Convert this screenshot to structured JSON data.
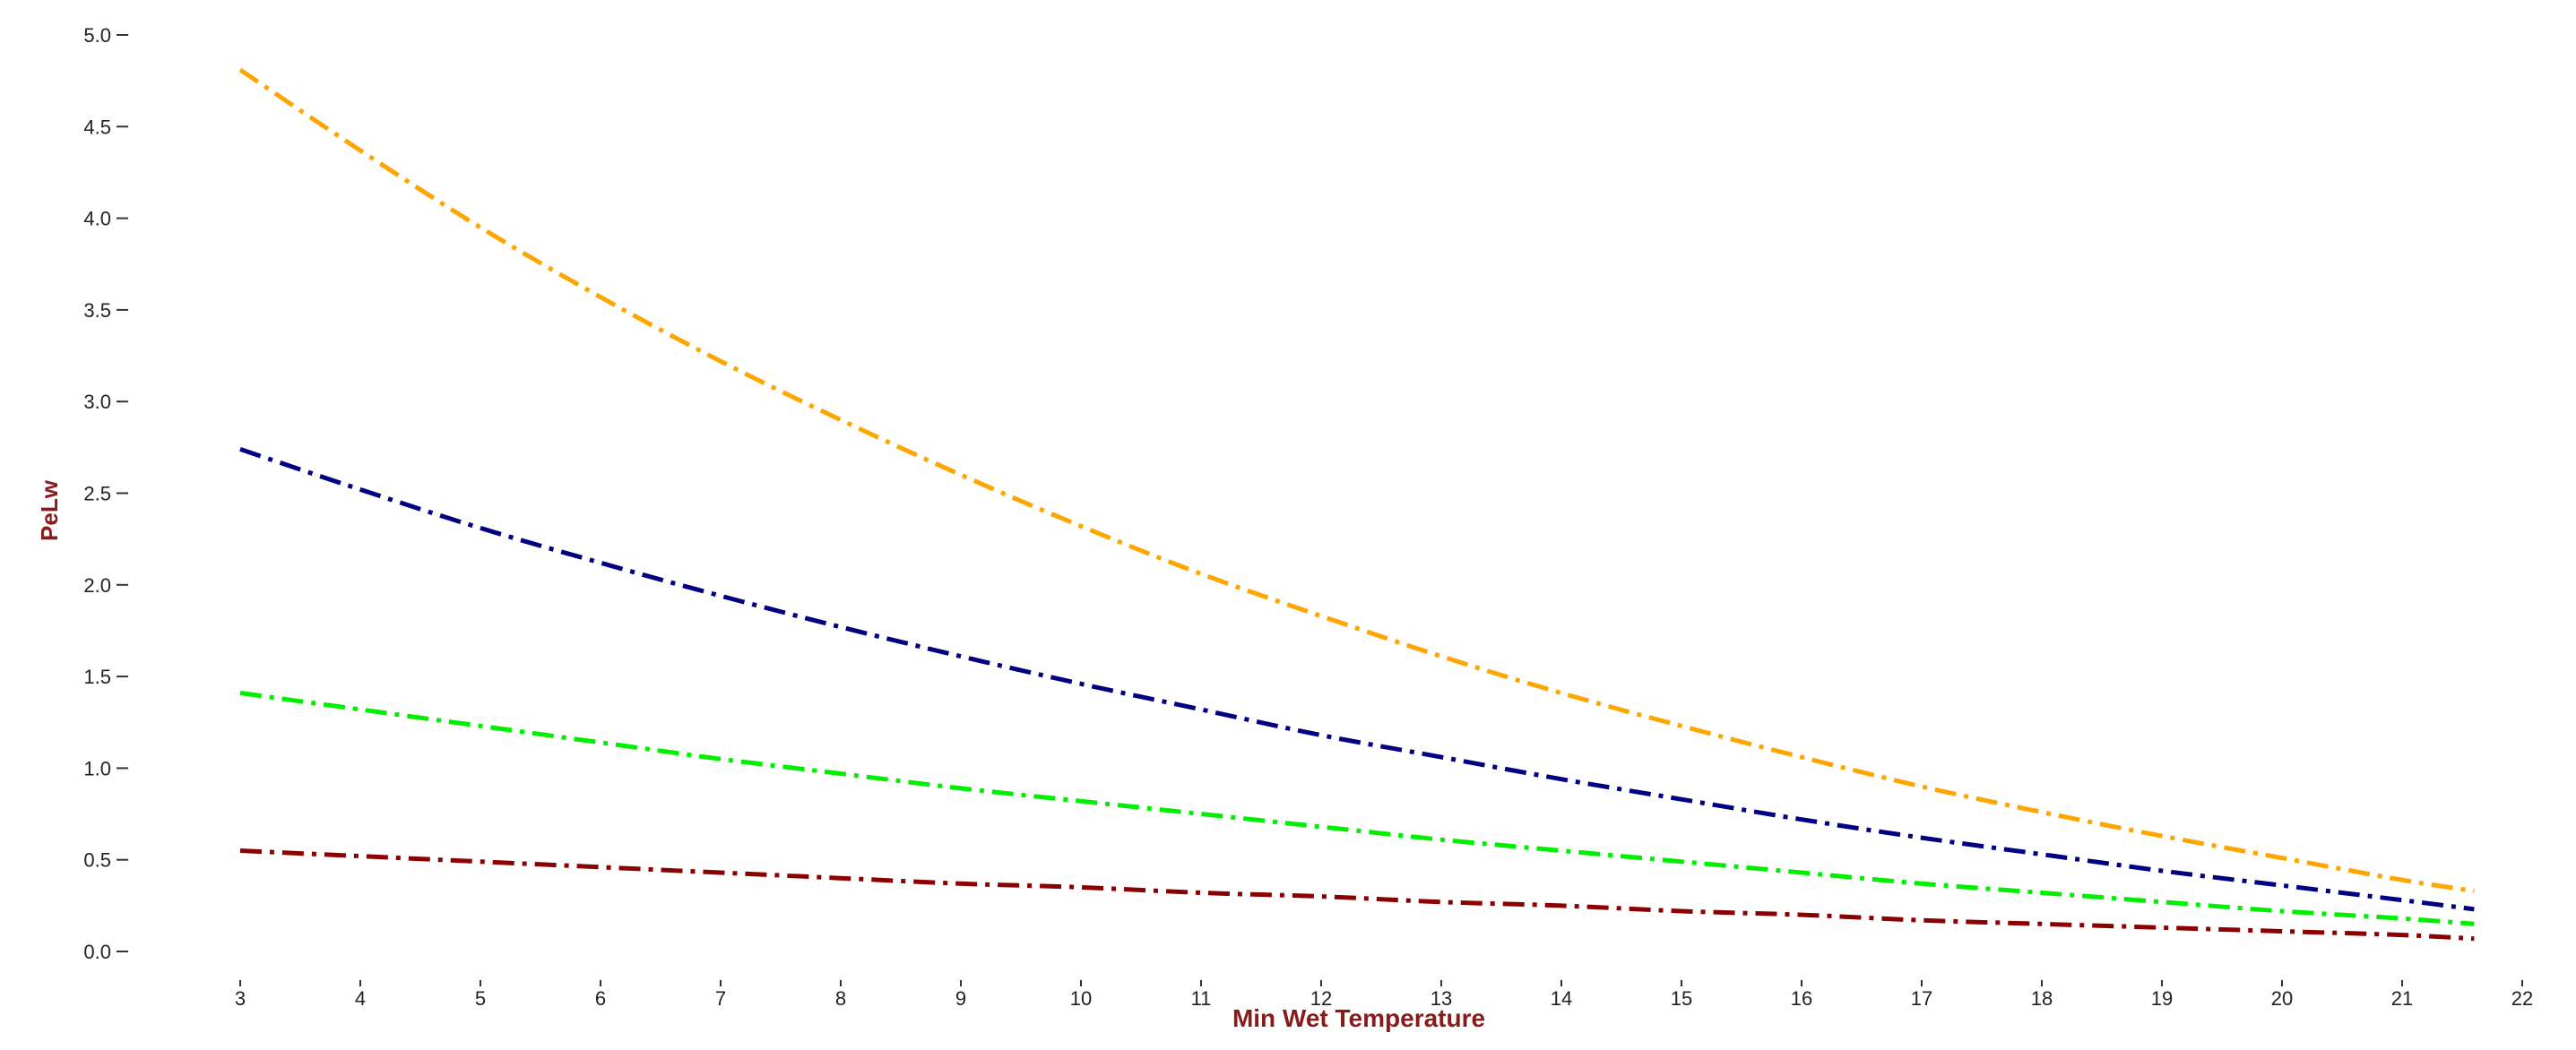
{
  "chart_data": {
    "type": "line",
    "title": "",
    "xlabel": "Min Wet Temperature",
    "ylabel": "PeLw",
    "xlim": [
      2,
      22
    ],
    "ylim": [
      0,
      5
    ],
    "x_ticks": [
      "3",
      "4",
      "5",
      "6",
      "7",
      "8",
      "9",
      "10",
      "11",
      "12",
      "13",
      "14",
      "15",
      "16",
      "17",
      "18",
      "19",
      "20",
      "21",
      "22"
    ],
    "y_ticks": [
      "0.0",
      "0.5",
      "1.0",
      "1.5",
      "2.0",
      "2.5",
      "3.0",
      "3.5",
      "4.0",
      "4.5",
      "5.0"
    ],
    "grid": false,
    "legend": "none",
    "label_color": "#8b1a1a",
    "series": [
      {
        "color": "#ffa500",
        "line_style": "dash-dot",
        "x": [
          3,
          4,
          5,
          6,
          7,
          8,
          9,
          10,
          11,
          12,
          13,
          14,
          15,
          16,
          17,
          18,
          19,
          20,
          21,
          21.6
        ],
        "y": [
          4.81,
          4.37,
          3.95,
          3.57,
          3.22,
          2.9,
          2.6,
          2.32,
          2.06,
          1.83,
          1.61,
          1.41,
          1.23,
          1.06,
          0.9,
          0.76,
          0.63,
          0.51,
          0.39,
          0.33
        ]
      },
      {
        "color": "#000080",
        "line_style": "dash-dot",
        "x": [
          3,
          4,
          5,
          6,
          7,
          8,
          9,
          10,
          11,
          12,
          13,
          14,
          15,
          16,
          17,
          18,
          19,
          20,
          21,
          21.6
        ],
        "y": [
          2.74,
          2.52,
          2.31,
          2.12,
          1.94,
          1.77,
          1.61,
          1.46,
          1.32,
          1.18,
          1.06,
          0.94,
          0.83,
          0.72,
          0.62,
          0.53,
          0.44,
          0.36,
          0.28,
          0.23
        ]
      },
      {
        "color": "#00ee00",
        "line_style": "dash-dot",
        "x": [
          3,
          4,
          5,
          6,
          7,
          8,
          9,
          10,
          11,
          12,
          13,
          14,
          15,
          16,
          17,
          18,
          19,
          20,
          21,
          21.6
        ],
        "y": [
          1.41,
          1.32,
          1.23,
          1.14,
          1.05,
          0.97,
          0.89,
          0.82,
          0.75,
          0.68,
          0.61,
          0.55,
          0.49,
          0.43,
          0.37,
          0.32,
          0.27,
          0.22,
          0.18,
          0.15
        ]
      },
      {
        "color": "#8b0000",
        "line_style": "dash-dot",
        "x": [
          3,
          4,
          5,
          6,
          7,
          8,
          9,
          10,
          11,
          12,
          13,
          14,
          15,
          16,
          17,
          18,
          19,
          20,
          21,
          21.6
        ],
        "y": [
          0.55,
          0.52,
          0.49,
          0.46,
          0.43,
          0.4,
          0.37,
          0.35,
          0.32,
          0.3,
          0.27,
          0.25,
          0.22,
          0.2,
          0.17,
          0.15,
          0.13,
          0.11,
          0.09,
          0.07
        ]
      }
    ]
  }
}
